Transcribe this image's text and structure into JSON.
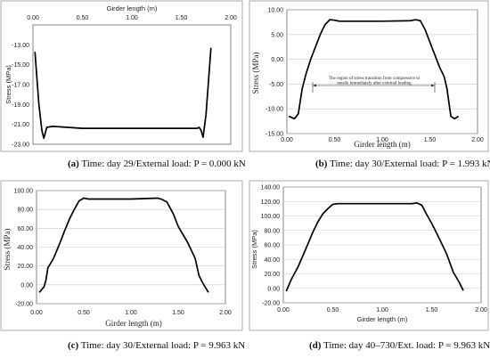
{
  "captions": [
    {
      "letter": "(a)",
      "text": " Time: day 29/External load: P = 0.000 kN"
    },
    {
      "letter": "(b)",
      "text": " Time: day 30/External load: P = 1.993 kN"
    },
    {
      "letter": "(c)",
      "text": " Time: day 30/External load: P = 9.963 kN"
    },
    {
      "letter": "(d)",
      "text": " Time: day 40–730/Ext. load: P = 9.963 kN"
    }
  ],
  "chart_data": [
    {
      "type": "line",
      "title": "",
      "xlabel": "Girder length (m)",
      "ylabel": "Stress (MPa)",
      "xlim": [
        0,
        2
      ],
      "ylim": [
        -23,
        -11
      ],
      "x_ticks": [
        "0.00",
        "0.50",
        "1.00",
        "1.50",
        "2.00"
      ],
      "y_ticks": [
        "-13.00",
        "-15.00",
        "-17.00",
        "-19.00",
        "-21.00",
        "-23.00"
      ],
      "x_axis_position": "top",
      "grid": false,
      "series": [
        {
          "x": [
            0.02,
            0.06,
            0.09,
            0.11,
            0.14,
            0.2,
            0.5,
            1.0,
            1.5,
            1.66,
            1.68,
            1.7,
            1.72,
            1.75,
            1.8
          ],
          "y": [
            -13.7,
            -19.0,
            -21.6,
            -22.4,
            -21.3,
            -21.2,
            -21.4,
            -21.4,
            -21.4,
            -21.4,
            -21.3,
            -21.6,
            -22.3,
            -20.0,
            -13.3
          ]
        }
      ]
    },
    {
      "type": "line",
      "title": "",
      "xlabel": "Girder length (m)",
      "ylabel": "Stress (MPa)",
      "xlim": [
        0,
        2
      ],
      "ylim": [
        -15,
        10
      ],
      "x_ticks": [
        "0.00",
        "0.50",
        "1.00",
        "1.50",
        "2.00"
      ],
      "y_ticks": [
        "10.00",
        "5.00",
        "0.00",
        "-5.00",
        "-10.00",
        "-15.00"
      ],
      "grid": true,
      "annotation": "The region of stress transition from compressive to tensile immediately after external loading",
      "series": [
        {
          "x": [
            0.02,
            0.08,
            0.12,
            0.16,
            0.2,
            0.25,
            0.3,
            0.35,
            0.4,
            0.45,
            0.5,
            0.55,
            1.0,
            1.3,
            1.35,
            1.4,
            1.45,
            1.5,
            1.55,
            1.6,
            1.65,
            1.68,
            1.72,
            1.76,
            1.8
          ],
          "y": [
            -11.5,
            -12.0,
            -11.0,
            -6.0,
            -3.0,
            0.0,
            2.5,
            5.0,
            7.0,
            8.0,
            7.9,
            7.7,
            7.7,
            7.8,
            8.0,
            7.8,
            6.0,
            3.5,
            1.0,
            -1.5,
            -3.5,
            -6.0,
            -11.5,
            -12.0,
            -11.5
          ]
        }
      ]
    },
    {
      "type": "line",
      "title": "",
      "xlabel": "Girder length (m)",
      "ylabel": "Stress (MPa)",
      "xlim": [
        0,
        2
      ],
      "ylim": [
        -20,
        100
      ],
      "x_ticks": [
        "0.00",
        "0.50",
        "1.00",
        "1.50",
        "2.00"
      ],
      "y_ticks": [
        "100.00",
        "80.00",
        "60.00",
        "40.00",
        "20.00",
        "0.00",
        "-20.00"
      ],
      "grid": true,
      "series": [
        {
          "x": [
            0.03,
            0.08,
            0.1,
            0.12,
            0.18,
            0.25,
            0.3,
            0.35,
            0.4,
            0.45,
            0.5,
            0.55,
            1.0,
            1.28,
            1.32,
            1.38,
            1.45,
            1.5,
            1.6,
            1.68,
            1.72,
            1.76,
            1.82
          ],
          "y": [
            -8,
            -2,
            5,
            18,
            28,
            45,
            58,
            70,
            80,
            89,
            92,
            91,
            91,
            92,
            91,
            88,
            75,
            62,
            45,
            28,
            10,
            2,
            -8
          ]
        }
      ]
    },
    {
      "type": "line",
      "title": "",
      "xlabel": "Girder length (m)",
      "ylabel": "Stress (MPa)",
      "xlim": [
        0,
        2
      ],
      "ylim": [
        -20,
        140
      ],
      "x_ticks": [
        "0.00",
        "0.50",
        "1.00",
        "1.50",
        "2.00"
      ],
      "y_ticks": [
        "140.00",
        "120.00",
        "100.00",
        "80.00",
        "60.00",
        "40.00",
        "20.00",
        "0.00",
        "-20.00"
      ],
      "grid": true,
      "series": [
        {
          "x": [
            0.03,
            0.08,
            0.15,
            0.22,
            0.3,
            0.35,
            0.4,
            0.45,
            0.5,
            0.55,
            0.6,
            1.0,
            1.3,
            1.35,
            1.4,
            1.45,
            1.5,
            1.58,
            1.65,
            1.72,
            1.78,
            1.82
          ],
          "y": [
            -4,
            12,
            30,
            52,
            78,
            92,
            103,
            110,
            116,
            117,
            117,
            117,
            117,
            118,
            115,
            102,
            90,
            68,
            48,
            22,
            8,
            -3
          ]
        }
      ]
    }
  ]
}
